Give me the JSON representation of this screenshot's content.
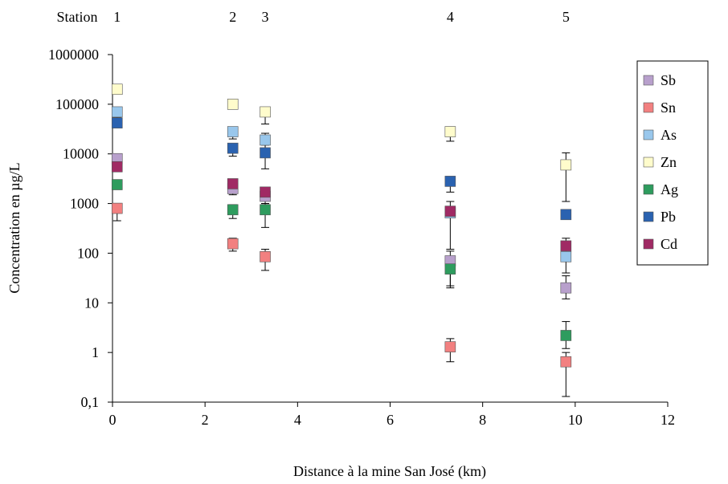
{
  "chart_data": {
    "type": "scatter",
    "title": "",
    "xlabel": "Distance à la mine San José (km)",
    "ylabel": "Concentration en µg/L",
    "xlim": [
      0,
      12
    ],
    "ylim": [
      0.1,
      1000000
    ],
    "yscale": "log",
    "x_ticks": [
      "0",
      "2",
      "4",
      "6",
      "8",
      "10",
      "12"
    ],
    "y_ticks": [
      "0,1",
      "1",
      "10",
      "100",
      "1000",
      "10000",
      "100000",
      "1000000"
    ],
    "grid": false,
    "legend_position": "right",
    "stations": {
      "label": "Station",
      "items": [
        {
          "name": "1",
          "x": 0.1
        },
        {
          "name": "2",
          "x": 2.6
        },
        {
          "name": "3",
          "x": 3.3
        },
        {
          "name": "4",
          "x": 7.3
        },
        {
          "name": "5",
          "x": 9.8
        }
      ]
    },
    "series": [
      {
        "name": "Sb",
        "color": "#b8a0cc",
        "points": [
          {
            "x": 0.1,
            "y": 8000
          },
          {
            "x": 2.6,
            "y": 2000,
            "lo": 1500,
            "hi": 2600
          },
          {
            "x": 3.3,
            "y": 1400,
            "lo": 1000,
            "hi": 2000
          },
          {
            "x": 7.3,
            "y": 70,
            "lo": 22,
            "hi": 110
          },
          {
            "x": 9.8,
            "y": 20,
            "lo": 12,
            "hi": 35
          }
        ]
      },
      {
        "name": "Sn",
        "color": "#f28080",
        "points": [
          {
            "x": 0.1,
            "y": 800,
            "lo": 450,
            "hi": 1000
          },
          {
            "x": 2.6,
            "y": 155,
            "lo": 110,
            "hi": 200
          },
          {
            "x": 3.3,
            "y": 85,
            "lo": 45,
            "hi": 120
          },
          {
            "x": 7.3,
            "y": 1.3,
            "lo": 0.65,
            "hi": 1.9
          },
          {
            "x": 9.8,
            "y": 0.65,
            "lo": 0.13,
            "hi": 1.0
          }
        ]
      },
      {
        "name": "As",
        "color": "#99c7ec",
        "points": [
          {
            "x": 0.1,
            "y": 70000
          },
          {
            "x": 2.6,
            "y": 28000,
            "lo": 20000,
            "hi": 33000
          },
          {
            "x": 3.3,
            "y": 19000,
            "lo": 13000,
            "hi": 26000
          },
          {
            "x": 7.3,
            "y": 650,
            "lo": 120,
            "hi": 1100
          },
          {
            "x": 9.8,
            "y": 85,
            "lo": 40,
            "hi": 140
          }
        ]
      },
      {
        "name": "Zn",
        "color": "#fffccc",
        "points": [
          {
            "x": 0.1,
            "y": 200000
          },
          {
            "x": 2.6,
            "y": 100000
          },
          {
            "x": 3.3,
            "y": 70000,
            "lo": 40000,
            "hi": 85000
          },
          {
            "x": 7.3,
            "y": 28000,
            "lo": 18000,
            "hi": 35000
          },
          {
            "x": 9.8,
            "y": 6000,
            "lo": 1100,
            "hi": 10500
          }
        ]
      },
      {
        "name": "Ag",
        "color": "#2e9c5e",
        "points": [
          {
            "x": 0.1,
            "y": 2400
          },
          {
            "x": 2.6,
            "y": 750,
            "lo": 500,
            "hi": 950
          },
          {
            "x": 3.3,
            "y": 750,
            "lo": 330,
            "hi": 1000
          },
          {
            "x": 7.3,
            "y": 48,
            "lo": 20,
            "hi": 80
          },
          {
            "x": 9.8,
            "y": 2.2,
            "lo": 1.2,
            "hi": 4.2
          }
        ]
      },
      {
        "name": "Pb",
        "color": "#2a62b0",
        "points": [
          {
            "x": 0.1,
            "y": 42000,
            "lo": 35000,
            "hi": 55000
          },
          {
            "x": 2.6,
            "y": 13000,
            "lo": 9000,
            "hi": 16000
          },
          {
            "x": 3.3,
            "y": 10500,
            "lo": 5000,
            "hi": 15000
          },
          {
            "x": 7.3,
            "y": 2800,
            "lo": 1700,
            "hi": 3500
          },
          {
            "x": 9.8,
            "y": 600
          }
        ]
      },
      {
        "name": "Cd",
        "color": "#a02a64",
        "points": [
          {
            "x": 0.1,
            "y": 5500
          },
          {
            "x": 2.6,
            "y": 2500
          },
          {
            "x": 3.3,
            "y": 1700
          },
          {
            "x": 7.3,
            "y": 700
          },
          {
            "x": 9.8,
            "y": 140,
            "lo": 80,
            "hi": 200
          }
        ]
      }
    ]
  }
}
